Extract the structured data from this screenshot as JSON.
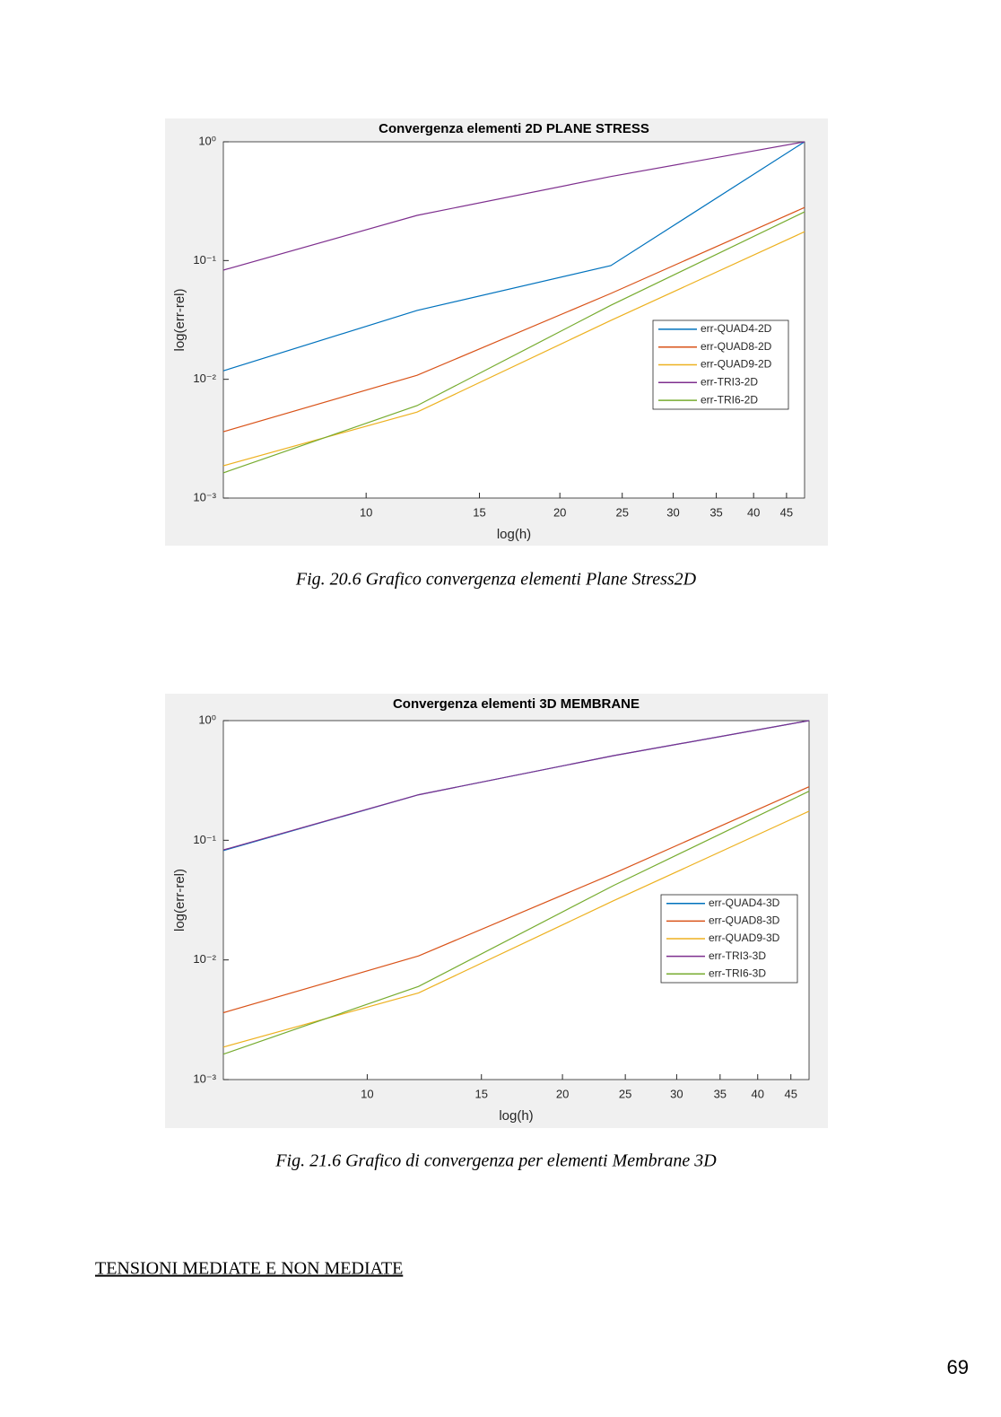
{
  "chart_data": [
    {
      "type": "line",
      "title": "Convergenza elementi 2D PLANE STRESS",
      "x_label": "log(h)",
      "y_label": "log(err-rel)",
      "xscale": "log",
      "yscale": "log",
      "grid": false,
      "legend": "east",
      "x": [
        6,
        12,
        24,
        48
      ],
      "xlim": [
        6,
        48
      ],
      "xticks": [
        10,
        15,
        20,
        25,
        30,
        35,
        40,
        45
      ],
      "ylim": [
        0.001,
        1
      ],
      "yticks": [
        {
          "value": 0.001,
          "label": "10⁻³"
        },
        {
          "value": 0.01,
          "label": "10⁻²"
        },
        {
          "value": 0.1,
          "label": "10⁻¹"
        },
        {
          "value": 1,
          "label": "10⁰"
        }
      ],
      "series": [
        {
          "name": "err-QUAD4-2D",
          "color": "#0072BD",
          "values": [
            0.0118,
            0.038,
            0.0906,
            1
          ]
        },
        {
          "name": "err-QUAD8-2D",
          "color": "#D95319",
          "values": [
            0.00362,
            0.0108,
            0.0528,
            0.28
          ]
        },
        {
          "name": "err-QUAD9-2D",
          "color": "#EDB120",
          "values": [
            0.00187,
            0.0053,
            0.0313,
            0.175
          ]
        },
        {
          "name": "err-TRI3-2D",
          "color": "#7E2F8E",
          "values": [
            0.083,
            0.24,
            0.51,
            1
          ]
        },
        {
          "name": "err-TRI6-2D",
          "color": "#77AC30",
          "values": [
            0.00163,
            0.006,
            0.042,
            0.257
          ]
        }
      ]
    },
    {
      "type": "line",
      "title": "Convergenza elementi 3D MEMBRANE",
      "x_label": "log(h)",
      "y_label": "log(err-rel)",
      "xscale": "log",
      "yscale": "log",
      "grid": false,
      "legend": "east",
      "x": [
        6,
        12,
        24,
        48
      ],
      "xlim": [
        6,
        48
      ],
      "xticks": [
        10,
        15,
        20,
        25,
        30,
        35,
        40,
        45
      ],
      "ylim": [
        0.001,
        1
      ],
      "yticks": [
        {
          "value": 0.001,
          "label": "10⁻³"
        },
        {
          "value": 0.01,
          "label": "10⁻²"
        },
        {
          "value": 0.1,
          "label": "10⁻¹"
        },
        {
          "value": 1,
          "label": "10⁰"
        }
      ],
      "series": [
        {
          "name": "err-QUAD4-3D",
          "color": "#0072BD",
          "values": [
            0.082,
            0.24,
            0.51,
            1
          ]
        },
        {
          "name": "err-QUAD8-3D",
          "color": "#D95319",
          "values": [
            0.00362,
            0.0108,
            0.0528,
            0.28
          ]
        },
        {
          "name": "err-QUAD9-3D",
          "color": "#EDB120",
          "values": [
            0.00187,
            0.0053,
            0.0313,
            0.175
          ]
        },
        {
          "name": "err-TRI3-3D",
          "color": "#7E2F8E",
          "values": [
            0.083,
            0.24,
            0.51,
            1
          ]
        },
        {
          "name": "err-TRI6-3D",
          "color": "#77AC30",
          "values": [
            0.00163,
            0.006,
            0.042,
            0.257
          ]
        }
      ]
    }
  ],
  "captions": [
    "Fig. 20.6 Grafico convergenza elementi Plane Stress2D",
    "Fig. 21.6 Grafico di convergenza per elementi Membrane 3D"
  ],
  "heading": "TENSIONI MEDIATE E NON MEDIATE",
  "page_number": "69"
}
